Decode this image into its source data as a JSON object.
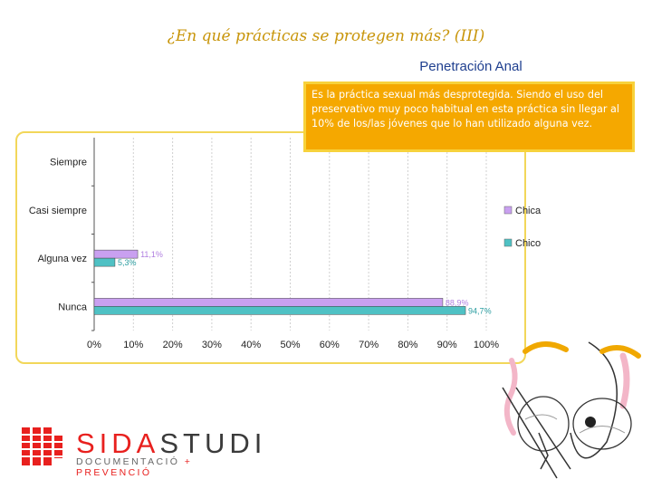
{
  "title": "¿En qué prácticas se protegen más? (III)",
  "subtitle": "Penetración Anal",
  "note": "Es la práctica sexual más desprotegida. Siendo el uso del preservativo muy poco habitual en esta práctica sin llegar al 10% de los/las jóvenes que lo han utilizado alguna vez.",
  "logo": {
    "part1": "SIDA",
    "part2": "STUDI",
    "sub1": "DOCUMENTACIÓ",
    "sub2": "+ PREVENCIÓ"
  },
  "colors": {
    "chica": "#c9a0f0",
    "chico": "#4fc1c4",
    "accent": "#f5a800",
    "frame": "#f2d75a"
  },
  "chart_data": {
    "type": "bar",
    "orientation": "horizontal",
    "categories": [
      "Siempre",
      "Casi siempre",
      "Alguna vez",
      "Nunca"
    ],
    "series": [
      {
        "name": "Chica",
        "values": [
          null,
          null,
          11.1,
          88.9
        ],
        "labels": [
          "",
          "",
          "11,1%",
          "88,9%"
        ]
      },
      {
        "name": "Chico",
        "values": [
          null,
          null,
          5.3,
          94.7
        ],
        "labels": [
          "",
          "",
          "5,3%",
          "94,7%"
        ]
      }
    ],
    "xticks": [
      "0%",
      "10%",
      "20%",
      "30%",
      "40%",
      "50%",
      "60%",
      "70%",
      "80%",
      "90%",
      "100%"
    ],
    "xlim": [
      0,
      100
    ],
    "grid": true,
    "legend_position": "right"
  }
}
